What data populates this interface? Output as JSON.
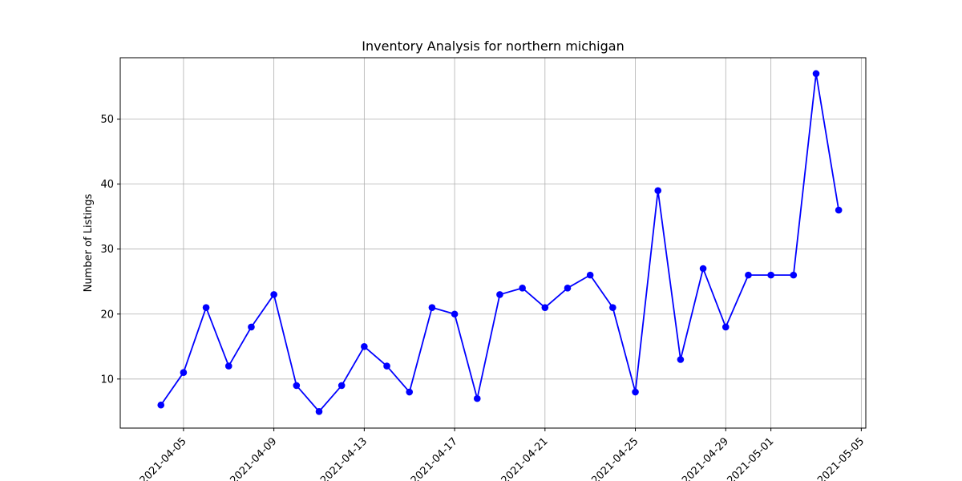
{
  "chart_data": {
    "type": "line",
    "title": "Inventory Analysis for northern michigan",
    "xlabel": "",
    "ylabel": "Number of Listings",
    "x": [
      "2021-04-04",
      "2021-04-05",
      "2021-04-06",
      "2021-04-07",
      "2021-04-08",
      "2021-04-09",
      "2021-04-10",
      "2021-04-11",
      "2021-04-12",
      "2021-04-13",
      "2021-04-14",
      "2021-04-15",
      "2021-04-16",
      "2021-04-17",
      "2021-04-18",
      "2021-04-19",
      "2021-04-20",
      "2021-04-21",
      "2021-04-22",
      "2021-04-23",
      "2021-04-24",
      "2021-04-25",
      "2021-04-26",
      "2021-04-27",
      "2021-04-28",
      "2021-04-29",
      "2021-04-30",
      "2021-05-01",
      "2021-05-02",
      "2021-05-03",
      "2021-05-04"
    ],
    "series": [
      {
        "values": [
          6,
          11,
          21,
          12,
          18,
          23,
          9,
          5,
          9,
          15,
          12,
          8,
          21,
          20,
          7,
          23,
          24,
          21,
          24,
          26,
          21,
          8,
          39,
          13,
          27,
          18,
          26,
          26,
          26,
          57,
          36
        ],
        "color": "#0000ff",
        "marker": "circle"
      }
    ],
    "xlim": [
      "2021-04-02",
      "2021-05-05"
    ],
    "ylim": [
      2,
      59
    ],
    "x_ticks": [
      "2021-04-05",
      "2021-04-09",
      "2021-04-13",
      "2021-04-17",
      "2021-04-21",
      "2021-04-25",
      "2021-04-29",
      "2021-05-01",
      "2021-05-05"
    ],
    "y_ticks": [
      10,
      20,
      30,
      40,
      50
    ],
    "grid": true,
    "legend": null
  }
}
